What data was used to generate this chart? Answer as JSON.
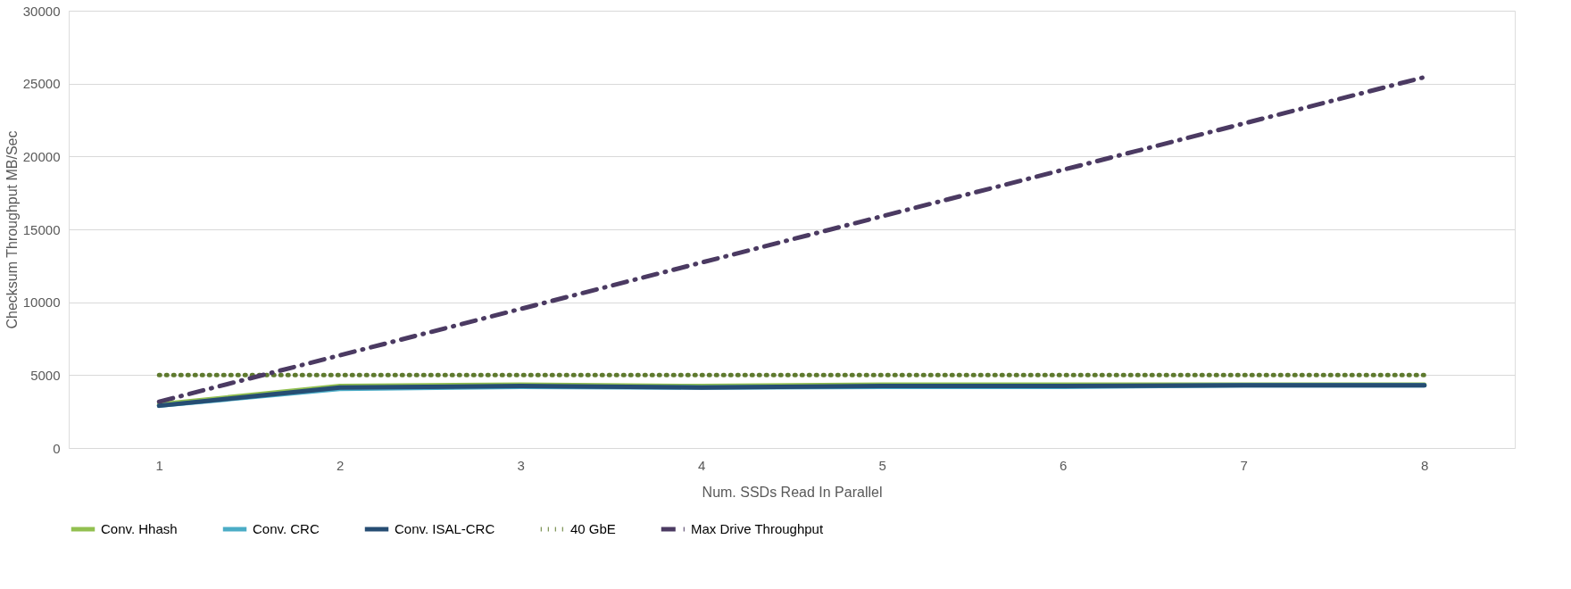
{
  "chart_data": {
    "type": "line",
    "xlabel": "Num. SSDs Read In Parallel",
    "ylabel": "Checksum Throughput MB/Sec",
    "categories": [
      "1",
      "2",
      "3",
      "4",
      "5",
      "6",
      "7",
      "8"
    ],
    "ylim": [
      0,
      30000
    ],
    "yticks": [
      0,
      5000,
      10000,
      15000,
      20000,
      25000,
      30000
    ],
    "grid": "y",
    "legend": "bottom",
    "marker": "none",
    "series": [
      {
        "name": "Conv. Hhash",
        "color": "#92c050",
        "line_style": "solid",
        "values": [
          3000,
          4250,
          4350,
          4250,
          4350,
          4350,
          4350,
          4350
        ]
      },
      {
        "name": "Conv. CRC",
        "color": "#4bacc6",
        "line_style": "solid",
        "values": [
          2900,
          4050,
          4200,
          4150,
          4200,
          4200,
          4300,
          4300
        ]
      },
      {
        "name": "Conv. ISAL-CRC",
        "color": "#264d73",
        "line_style": "solid",
        "values": [
          2900,
          4150,
          4250,
          4150,
          4250,
          4250,
          4300,
          4300
        ]
      },
      {
        "name": "40 GbE",
        "color": "#5e7a2e",
        "line_style": "dotted",
        "values": [
          5000,
          5000,
          5000,
          5000,
          5000,
          5000,
          5000,
          5000
        ]
      },
      {
        "name": "Max Drive Throughput",
        "color": "#4b3a62",
        "line_style": "dashed",
        "values": [
          3180,
          6360,
          9540,
          12720,
          15900,
          19080,
          22260,
          25440
        ]
      }
    ]
  }
}
